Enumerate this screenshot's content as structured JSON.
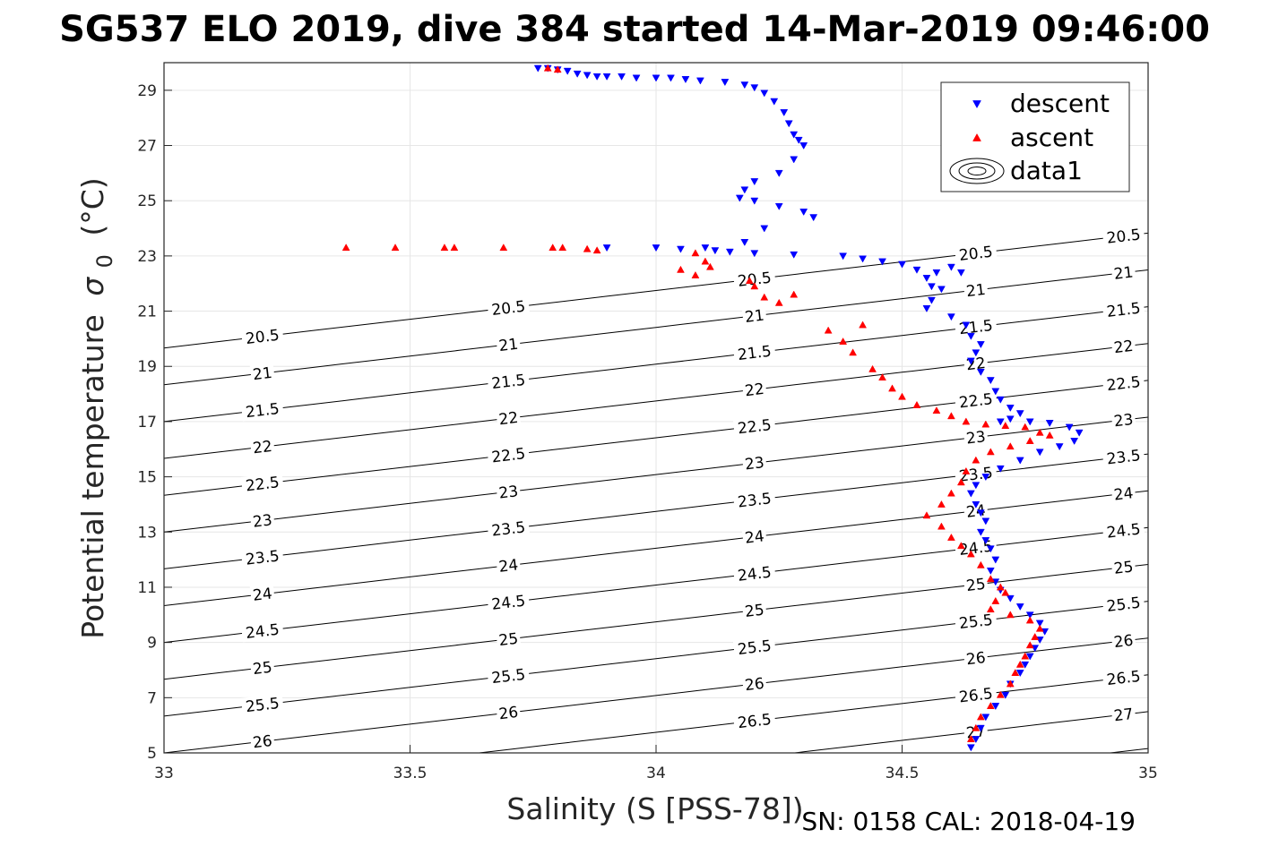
{
  "chart_data": {
    "type": "scatter",
    "title": "SG537 ELO 2019, dive 384 started 14-Mar-2019 09:46:00",
    "xlabel": "Salinity (S [PSS-78])",
    "ylabel_main": "Potential temperature",
    "ylabel_sym": "σ",
    "ylabel_sub": "0",
    "ylabel_unit": "(°C)",
    "footer": "SN: 0158  CAL: 2018-04-19",
    "xlim": [
      33,
      35
    ],
    "ylim": [
      5,
      30
    ],
    "x_ticks": [
      "33",
      "33.5",
      "34",
      "34.5",
      "35"
    ],
    "y_ticks": [
      "5",
      "7",
      "9",
      "11",
      "13",
      "15",
      "17",
      "19",
      "21",
      "23",
      "25",
      "27",
      "29"
    ],
    "grid": true,
    "legend_position": "top-right",
    "legend": [
      "descent",
      "ascent",
      "data1"
    ],
    "colors": {
      "descent": "#0000ff",
      "ascent": "#ff0000",
      "contour": "#000000",
      "grid": "#e6e6e6"
    },
    "contour_levels": [
      "20.5",
      "21",
      "21.5",
      "22",
      "22.5",
      "23",
      "23.5",
      "24",
      "24.5",
      "25",
      "25.5",
      "26",
      "26.5",
      "27",
      "27.5"
    ],
    "series": [
      {
        "name": "descent",
        "marker": "triangle-down",
        "points": [
          [
            33.76,
            29.8
          ],
          [
            33.78,
            29.8
          ],
          [
            33.8,
            29.75
          ],
          [
            33.82,
            29.7
          ],
          [
            33.84,
            29.6
          ],
          [
            33.86,
            29.55
          ],
          [
            33.88,
            29.5
          ],
          [
            33.9,
            29.5
          ],
          [
            33.93,
            29.5
          ],
          [
            33.96,
            29.45
          ],
          [
            34.0,
            29.45
          ],
          [
            34.03,
            29.45
          ],
          [
            34.06,
            29.4
          ],
          [
            34.09,
            29.35
          ],
          [
            34.14,
            29.3
          ],
          [
            34.18,
            29.2
          ],
          [
            34.2,
            29.1
          ],
          [
            34.22,
            28.9
          ],
          [
            34.24,
            28.6
          ],
          [
            34.26,
            28.2
          ],
          [
            34.27,
            27.8
          ],
          [
            34.28,
            27.4
          ],
          [
            34.29,
            27.2
          ],
          [
            34.3,
            27.0
          ],
          [
            34.28,
            26.5
          ],
          [
            34.25,
            26.0
          ],
          [
            34.2,
            25.7
          ],
          [
            34.18,
            25.4
          ],
          [
            34.17,
            25.1
          ],
          [
            34.2,
            25.0
          ],
          [
            34.25,
            24.8
          ],
          [
            34.3,
            24.6
          ],
          [
            34.32,
            24.4
          ],
          [
            34.22,
            24.0
          ],
          [
            34.18,
            23.5
          ],
          [
            34.1,
            23.3
          ],
          [
            34.0,
            23.3
          ],
          [
            33.9,
            23.3
          ],
          [
            34.05,
            23.25
          ],
          [
            34.12,
            23.2
          ],
          [
            34.15,
            23.15
          ],
          [
            34.2,
            23.1
          ],
          [
            34.28,
            23.05
          ],
          [
            34.38,
            23.0
          ],
          [
            34.42,
            22.9
          ],
          [
            34.46,
            22.8
          ],
          [
            34.5,
            22.7
          ],
          [
            34.53,
            22.5
          ],
          [
            34.55,
            22.2
          ],
          [
            34.56,
            21.9
          ],
          [
            34.57,
            22.4
          ],
          [
            34.6,
            22.6
          ],
          [
            34.62,
            22.4
          ],
          [
            34.58,
            21.8
          ],
          [
            34.56,
            21.4
          ],
          [
            34.55,
            21.1
          ],
          [
            34.6,
            20.8
          ],
          [
            34.63,
            20.5
          ],
          [
            34.64,
            20.1
          ],
          [
            34.66,
            19.8
          ],
          [
            34.65,
            19.5
          ],
          [
            34.64,
            19.2
          ],
          [
            34.66,
            18.8
          ],
          [
            34.68,
            18.5
          ],
          [
            34.69,
            18.1
          ],
          [
            34.7,
            17.8
          ],
          [
            34.72,
            17.5
          ],
          [
            34.74,
            17.3
          ],
          [
            34.72,
            17.1
          ],
          [
            34.7,
            17.0
          ],
          [
            34.76,
            17.0
          ],
          [
            34.8,
            16.95
          ],
          [
            34.84,
            16.8
          ],
          [
            34.86,
            16.6
          ],
          [
            34.85,
            16.3
          ],
          [
            34.82,
            16.1
          ],
          [
            34.78,
            15.9
          ],
          [
            34.74,
            15.6
          ],
          [
            34.7,
            15.3
          ],
          [
            34.67,
            15.0
          ],
          [
            34.65,
            14.7
          ],
          [
            34.64,
            14.4
          ],
          [
            34.65,
            14.0
          ],
          [
            34.66,
            13.7
          ],
          [
            34.67,
            13.4
          ],
          [
            34.66,
            13.0
          ],
          [
            34.67,
            12.7
          ],
          [
            34.68,
            12.4
          ],
          [
            34.69,
            12.0
          ],
          [
            34.68,
            11.6
          ],
          [
            34.69,
            11.2
          ],
          [
            34.7,
            10.9
          ],
          [
            34.72,
            10.6
          ],
          [
            34.74,
            10.3
          ],
          [
            34.76,
            10.0
          ],
          [
            34.78,
            9.7
          ],
          [
            34.79,
            9.4
          ],
          [
            34.78,
            9.1
          ],
          [
            34.77,
            8.8
          ],
          [
            34.76,
            8.5
          ],
          [
            34.75,
            8.2
          ],
          [
            34.74,
            7.9
          ],
          [
            34.72,
            7.5
          ],
          [
            34.71,
            7.1
          ],
          [
            34.69,
            6.7
          ],
          [
            34.67,
            6.3
          ],
          [
            34.66,
            5.9
          ],
          [
            34.65,
            5.5
          ],
          [
            34.64,
            5.2
          ]
        ]
      },
      {
        "name": "ascent",
        "marker": "triangle-up",
        "points": [
          [
            33.78,
            29.8
          ],
          [
            33.8,
            29.75
          ],
          [
            33.37,
            23.3
          ],
          [
            33.47,
            23.3
          ],
          [
            33.57,
            23.3
          ],
          [
            33.59,
            23.3
          ],
          [
            33.69,
            23.3
          ],
          [
            33.79,
            23.3
          ],
          [
            33.81,
            23.3
          ],
          [
            33.86,
            23.25
          ],
          [
            33.88,
            23.2
          ],
          [
            34.08,
            23.1
          ],
          [
            34.1,
            22.8
          ],
          [
            34.11,
            22.6
          ],
          [
            34.05,
            22.5
          ],
          [
            34.08,
            22.3
          ],
          [
            34.19,
            22.1
          ],
          [
            34.2,
            21.9
          ],
          [
            34.22,
            21.5
          ],
          [
            34.25,
            21.3
          ],
          [
            34.28,
            21.6
          ],
          [
            34.35,
            20.3
          ],
          [
            34.38,
            19.9
          ],
          [
            34.4,
            19.5
          ],
          [
            34.42,
            20.5
          ],
          [
            34.44,
            18.9
          ],
          [
            34.46,
            18.6
          ],
          [
            34.48,
            18.2
          ],
          [
            34.5,
            17.9
          ],
          [
            34.53,
            17.6
          ],
          [
            34.57,
            17.4
          ],
          [
            34.6,
            17.2
          ],
          [
            34.63,
            17.0
          ],
          [
            34.67,
            16.9
          ],
          [
            34.71,
            16.85
          ],
          [
            34.75,
            16.8
          ],
          [
            34.78,
            16.6
          ],
          [
            34.8,
            16.5
          ],
          [
            34.76,
            16.3
          ],
          [
            34.72,
            16.1
          ],
          [
            34.68,
            15.9
          ],
          [
            34.65,
            15.6
          ],
          [
            34.63,
            15.2
          ],
          [
            34.62,
            14.8
          ],
          [
            34.6,
            14.4
          ],
          [
            34.58,
            14.0
          ],
          [
            34.55,
            13.6
          ],
          [
            34.58,
            13.2
          ],
          [
            34.6,
            12.8
          ],
          [
            34.62,
            12.5
          ],
          [
            34.64,
            12.2
          ],
          [
            34.66,
            11.8
          ],
          [
            34.68,
            11.3
          ],
          [
            34.7,
            11.0
          ],
          [
            34.71,
            10.8
          ],
          [
            34.69,
            10.5
          ],
          [
            34.68,
            10.2
          ],
          [
            34.72,
            10.0
          ],
          [
            34.76,
            9.8
          ],
          [
            34.78,
            9.5
          ],
          [
            34.77,
            9.2
          ],
          [
            34.76,
            8.9
          ],
          [
            34.75,
            8.5
          ],
          [
            34.74,
            8.2
          ],
          [
            34.73,
            7.9
          ],
          [
            34.72,
            7.5
          ],
          [
            34.7,
            7.1
          ],
          [
            34.68,
            6.7
          ],
          [
            34.66,
            6.3
          ],
          [
            34.65,
            5.9
          ],
          [
            34.64,
            5.5
          ]
        ]
      }
    ]
  }
}
